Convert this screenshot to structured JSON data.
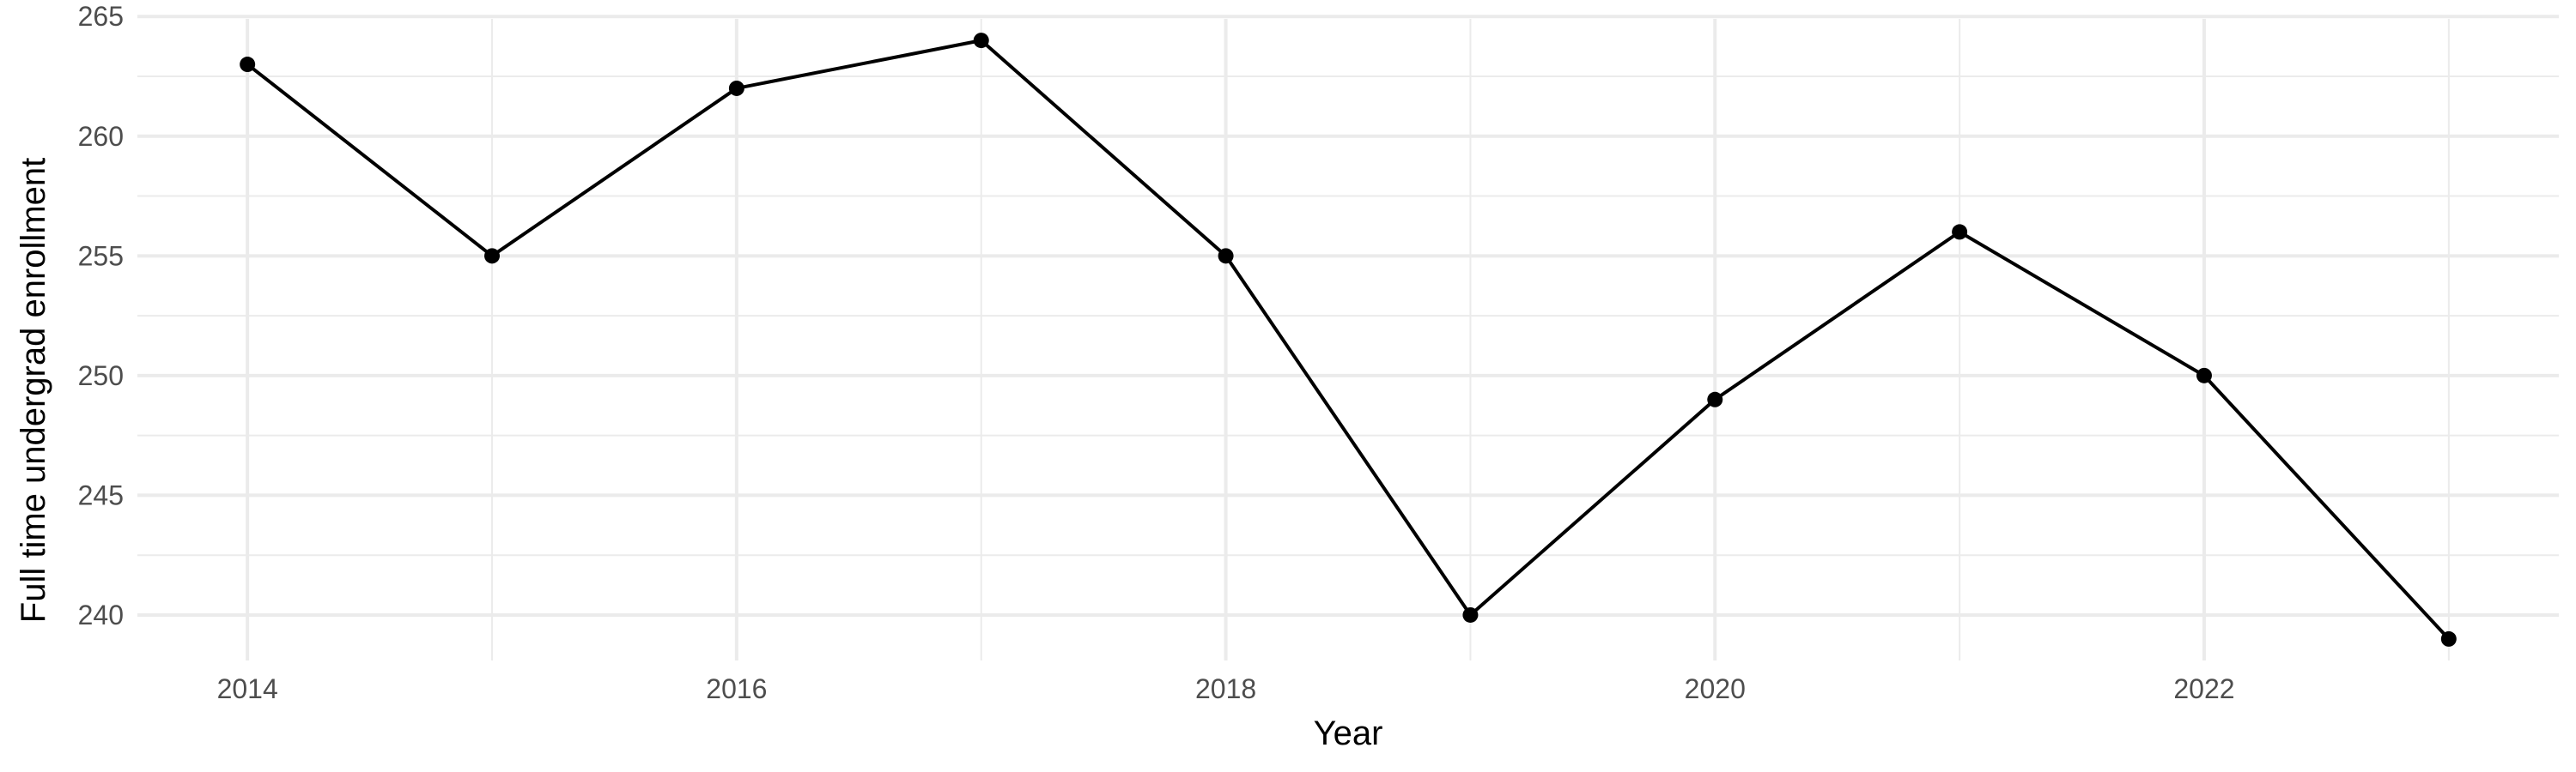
{
  "chart_data": {
    "type": "line",
    "title": "",
    "xlabel": "Year",
    "ylabel": "Full time undergrad enrollment",
    "x": [
      2014,
      2015,
      2016,
      2017,
      2018,
      2019,
      2020,
      2021,
      2022,
      2023
    ],
    "series": [
      {
        "values": [
          263,
          255,
          262,
          264,
          255,
          240,
          249,
          256,
          250,
          239
        ],
        "color": "#000000"
      }
    ],
    "xlim": [
      2013.55,
      2023.45
    ],
    "ylim": [
      238.1,
      264.9
    ],
    "x_ticks": [
      2014,
      2016,
      2018,
      2020,
      2022
    ],
    "x_tick_labels": [
      "2014",
      "2016",
      "2018",
      "2020",
      "2022"
    ],
    "x_minor_ticks": [
      2015,
      2017,
      2019,
      2021,
      2023
    ],
    "y_ticks": [
      240,
      245,
      250,
      255,
      260,
      265
    ],
    "y_tick_labels": [
      "240",
      "245",
      "250",
      "255",
      "260",
      "265"
    ],
    "y_minor_ticks": [
      242.5,
      247.5,
      252.5,
      257.5,
      262.5
    ],
    "grid": true,
    "legend": "none",
    "markers": true
  }
}
